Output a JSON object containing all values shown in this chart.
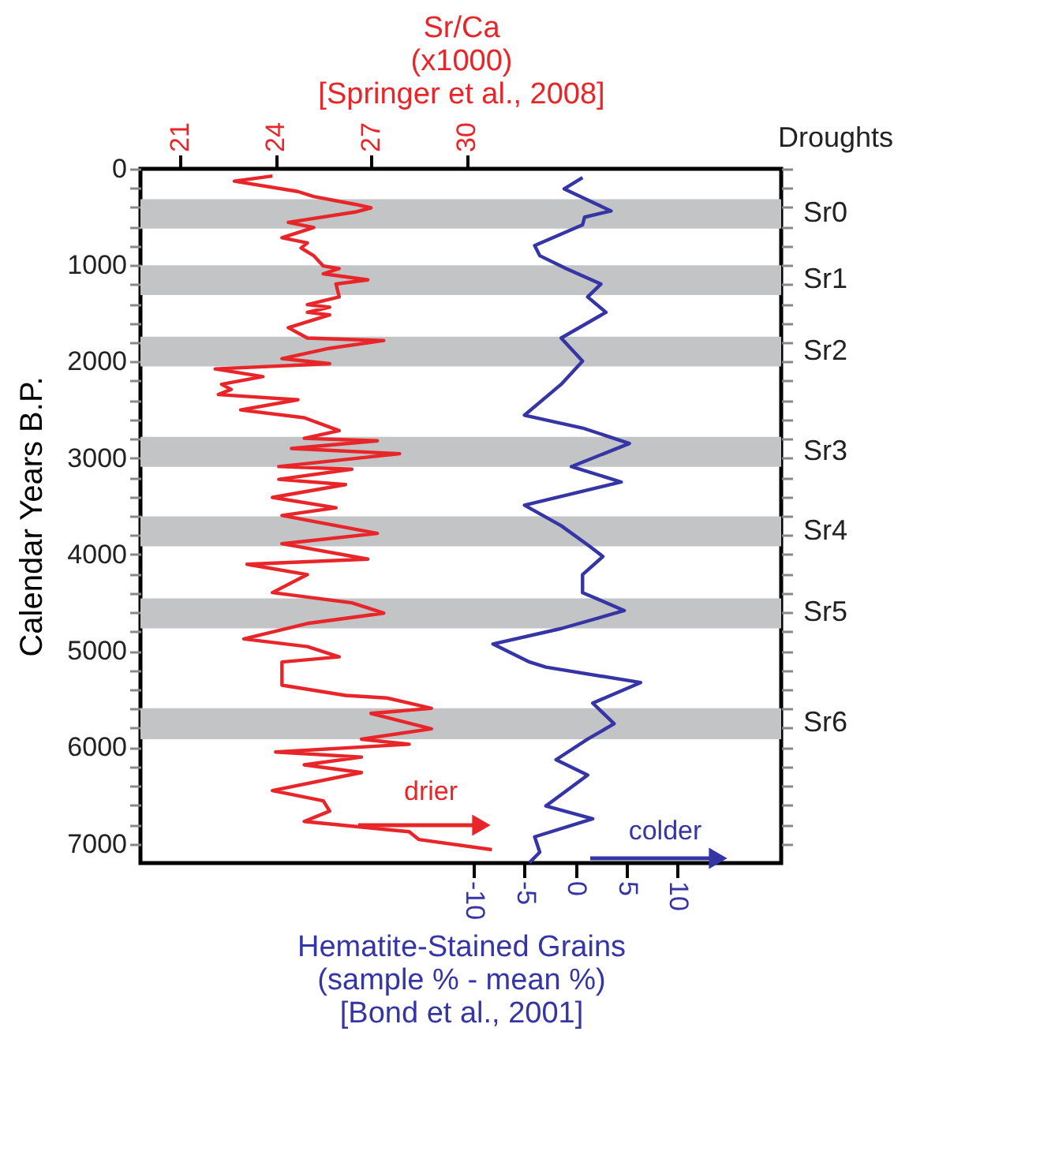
{
  "chart_data": {
    "type": "line",
    "orientation": "horizontal",
    "xlabel": "Hematite-Stained Grains\n(sample % - mean %)\n[Bond et al., 2001]",
    "x2label": "Sr/Ca\n(x1000)\n[Springer et al., 2008]",
    "ylabel": "Calendar Years B.P.",
    "xlim": [
      -42.7,
      20.2
    ],
    "xticks": [
      -10,
      -5,
      0,
      5,
      10
    ],
    "x2lim": [
      19.75,
      39.9
    ],
    "x2ticks": [
      21,
      24,
      27,
      30
    ],
    "ylim": [
      7200,
      0
    ],
    "yticks": [
      0,
      {
        "value": 200,
        "label": null
      },
      {
        "value": 400,
        "label": null
      },
      {
        "value": 600,
        "label": null
      },
      {
        "value": 800,
        "label": null
      },
      1000,
      {
        "value": 1200,
        "label": null
      },
      {
        "value": 1400,
        "label": null
      },
      {
        "value": 1600,
        "label": null
      },
      {
        "value": 1800,
        "label": null
      },
      2000,
      {
        "value": 2200,
        "label": null
      },
      {
        "value": 2400,
        "label": null
      },
      {
        "value": 2600,
        "label": null
      },
      {
        "value": 2800,
        "label": null
      },
      3000,
      {
        "value": 3200,
        "label": null
      },
      {
        "value": 3400,
        "label": null
      },
      {
        "value": 3600,
        "label": null
      },
      {
        "value": 3800,
        "label": null
      },
      4000,
      {
        "value": 4200,
        "label": null
      },
      {
        "value": 4400,
        "label": null
      },
      {
        "value": 4600,
        "label": null
      },
      {
        "value": 4800,
        "label": null
      },
      5000,
      {
        "value": 5200,
        "label": null
      },
      {
        "value": 5400,
        "label": null
      },
      {
        "value": 5600,
        "label": null
      },
      {
        "value": 5800,
        "label": null
      },
      6000,
      {
        "value": 6200,
        "label": null
      },
      {
        "value": 6400,
        "label": null
      },
      {
        "value": 6600,
        "label": null
      },
      {
        "value": 6800,
        "label": null
      },
      7000
    ],
    "series": [
      {
        "color": "#e8262a",
        "axis": "x2",
        "x": [
          75,
          128,
          235,
          288,
          368,
          405,
          448,
          555,
          608,
          715,
          768,
          821,
          901,
          1008,
          1035,
          1088,
          1152,
          1195,
          1328,
          1408,
          1435,
          1488,
          1515,
          1648,
          1755,
          1781,
          1861,
          1968,
          2021,
          2075,
          2155,
          2235,
          2288,
          2341,
          2395,
          2501,
          2581,
          2715,
          2795,
          2821,
          2901,
          2955,
          3088,
          3115,
          3221,
          3275,
          3408,
          3515,
          3595,
          3781,
          3888,
          4048,
          4101,
          4208,
          4395,
          4501,
          4608,
          4715,
          4875,
          4955,
          5061,
          5115,
          5355,
          5461,
          5488,
          5595,
          5648,
          5808,
          5915,
          5968,
          6048,
          6101,
          6181,
          6261,
          6448,
          6555,
          6661,
          6768,
          6875,
          6955,
          7061
        ],
        "values": [
          23.9,
          22.7,
          24.7,
          25.2,
          26.5,
          27.0,
          26.5,
          24.4,
          25.2,
          24.2,
          25.0,
          24.8,
          25.2,
          25.5,
          26.0,
          25.5,
          26.9,
          25.9,
          26.0,
          25.0,
          25.7,
          25.0,
          25.7,
          24.4,
          25.0,
          27.4,
          25.7,
          24.2,
          25.7,
          22.1,
          23.6,
          22.3,
          22.6,
          22.2,
          24.7,
          22.9,
          24.9,
          26.0,
          24.9,
          27.2,
          24.5,
          27.9,
          24.1,
          26.4,
          24.1,
          26.2,
          23.9,
          25.9,
          24.2,
          27.2,
          24.2,
          26.9,
          23.1,
          25.0,
          23.9,
          26.4,
          27.4,
          25.0,
          23.0,
          25.0,
          26.0,
          24.2,
          24.2,
          26.2,
          27.5,
          28.9,
          27.0,
          28.9,
          26.7,
          28.2,
          24.0,
          26.7,
          24.9,
          26.7,
          23.9,
          25.5,
          25.7,
          24.9,
          28.2,
          28.5,
          30.8
        ]
      },
      {
        "color": "#3535a5",
        "x": [
          91,
          208,
          437,
          501,
          581,
          795,
          901,
          1035,
          1195,
          1328,
          1488,
          1755,
          1995,
          2235,
          2555,
          2688,
          2848,
          3088,
          3248,
          3488,
          3701,
          3915,
          4021,
          4208,
          4395,
          4581,
          4768,
          4928,
          5115,
          5168,
          5328,
          5541,
          5755,
          5915,
          6128,
          6288,
          6608,
          6741,
          6928,
          7088,
          7195
        ],
        "values": [
          0.7,
          -1.1,
          3.5,
          0.9,
          0.7,
          -4.0,
          -3.5,
          -0.9,
          2.5,
          1.2,
          3.0,
          -1.4,
          0.7,
          -1.4,
          -5.0,
          0.7,
          5.3,
          -0.4,
          4.5,
          -5.0,
          -1.4,
          1.4,
          2.7,
          0.7,
          0.7,
          4.8,
          -1.4,
          -8.1,
          -4.5,
          -2.9,
          6.4,
          1.7,
          3.8,
          1.2,
          -1.9,
          1.2,
          -2.9,
          1.7,
          -4.0,
          -3.5,
          -4.5
        ]
      }
    ],
    "bands": [
      {
        "axis": "y",
        "from": 315,
        "to": 620,
        "label": "Sr0",
        "color": "#c2c4c6"
      },
      {
        "axis": "y",
        "from": 1000,
        "to": 1310,
        "label": "Sr1",
        "color": "#c2c4c6"
      },
      {
        "axis": "y",
        "from": 1740,
        "to": 2050,
        "label": "Sr2",
        "color": "#c2c4c6"
      },
      {
        "axis": "y",
        "from": 2780,
        "to": 3090,
        "label": "Sr3",
        "color": "#c2c4c6"
      },
      {
        "axis": "y",
        "from": 3605,
        "to": 3915,
        "label": "Sr4",
        "color": "#c2c4c6"
      },
      {
        "axis": "y",
        "from": 4455,
        "to": 4765,
        "label": "Sr5",
        "color": "#c2c4c6"
      },
      {
        "axis": "y",
        "from": 5595,
        "to": 5915,
        "label": "Sr6",
        "color": "#c2c4c6"
      }
    ],
    "annotations": [
      "Droughts",
      "drier",
      "colder"
    ],
    "grid": false
  }
}
